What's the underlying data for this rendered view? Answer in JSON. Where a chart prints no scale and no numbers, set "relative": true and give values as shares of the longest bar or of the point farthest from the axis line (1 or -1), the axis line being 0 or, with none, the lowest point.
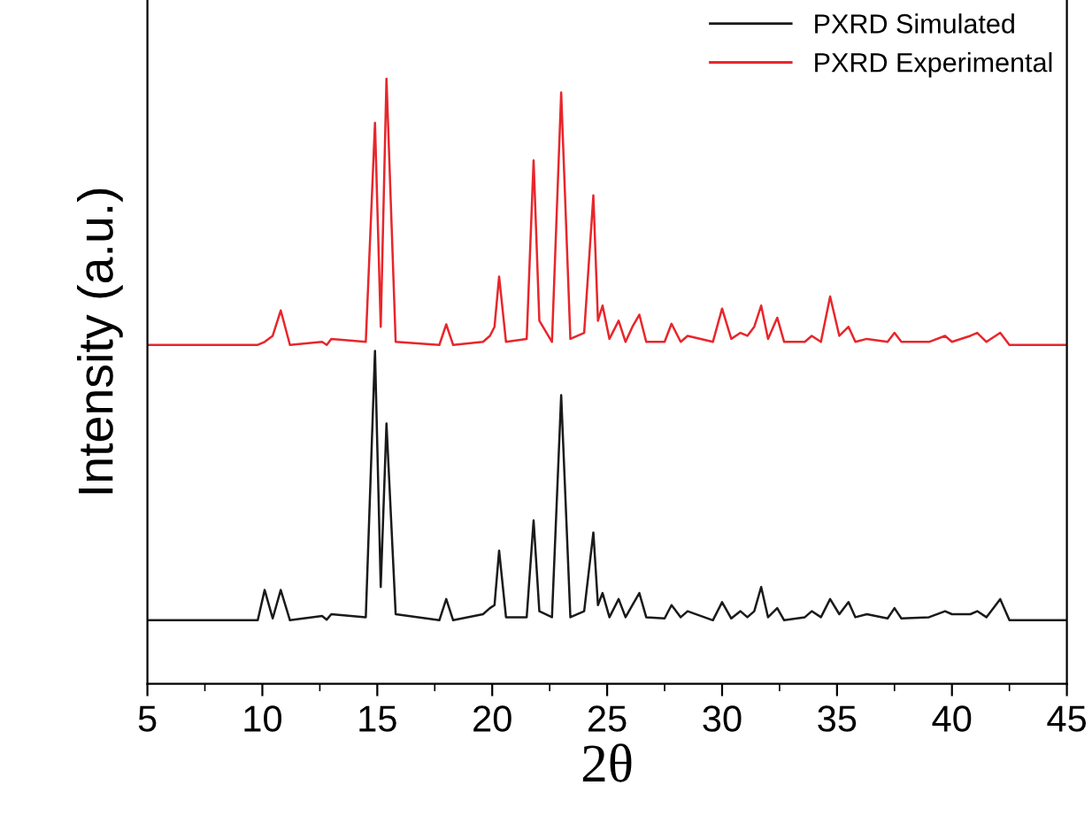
{
  "chart_data": {
    "type": "line",
    "relative": true,
    "xlabel": "2θ",
    "ylabel": "Intensity (a.u.)",
    "x": [
      5,
      9.8,
      10.1,
      10.45,
      10.8,
      11.2,
      12.6,
      12.8,
      13.0,
      14.5,
      14.9,
      15.15,
      15.4,
      15.8,
      17.7,
      18.0,
      18.3,
      19.6,
      19.9,
      20.1,
      20.3,
      20.6,
      21.5,
      21.8,
      22.05,
      22.6,
      23.0,
      23.4,
      24.0,
      24.4,
      24.6,
      24.8,
      25.1,
      25.5,
      25.8,
      26.1,
      26.4,
      26.7,
      27.5,
      27.8,
      28.2,
      28.5,
      29.6,
      30.0,
      30.4,
      30.8,
      31.1,
      31.4,
      31.7,
      32.0,
      32.4,
      32.7,
      33.6,
      33.9,
      34.3,
      34.7,
      35.1,
      35.5,
      35.8,
      36.3,
      37.2,
      37.5,
      37.8,
      39.0,
      39.7,
      40.0,
      40.8,
      41.1,
      41.5,
      42.1,
      42.5,
      45
    ],
    "xlim": [
      5,
      45
    ],
    "xticks": [
      5,
      10,
      15,
      20,
      25,
      30,
      35,
      40,
      45
    ],
    "series": [
      {
        "name": "PXRD Simulated",
        "color": "#1a1a1a",
        "values": [
          0.105,
          0.105,
          0.155,
          0.108,
          0.155,
          0.105,
          0.112,
          0.106,
          0.115,
          0.11,
          0.55,
          0.16,
          0.43,
          0.115,
          0.105,
          0.14,
          0.105,
          0.115,
          0.125,
          0.13,
          0.22,
          0.11,
          0.11,
          0.27,
          0.12,
          0.11,
          0.477,
          0.11,
          0.12,
          0.25,
          0.13,
          0.15,
          0.11,
          0.14,
          0.11,
          0.13,
          0.15,
          0.11,
          0.108,
          0.13,
          0.11,
          0.12,
          0.105,
          0.135,
          0.108,
          0.12,
          0.11,
          0.12,
          0.16,
          0.11,
          0.125,
          0.105,
          0.11,
          0.12,
          0.11,
          0.14,
          0.115,
          0.135,
          0.11,
          0.115,
          0.108,
          0.125,
          0.108,
          0.11,
          0.12,
          0.115,
          0.115,
          0.12,
          0.11,
          0.14,
          0.105,
          0.105
        ]
      },
      {
        "name": "PXRD Experimental",
        "color": "#e8262b",
        "values": [
          0.56,
          0.56,
          0.565,
          0.575,
          0.617,
          0.56,
          0.565,
          0.56,
          0.57,
          0.565,
          0.927,
          0.59,
          1.0,
          0.565,
          0.56,
          0.594,
          0.56,
          0.565,
          0.575,
          0.59,
          0.673,
          0.565,
          0.57,
          0.865,
          0.6,
          0.565,
          0.977,
          0.57,
          0.58,
          0.807,
          0.6,
          0.625,
          0.57,
          0.6,
          0.565,
          0.59,
          0.61,
          0.565,
          0.565,
          0.595,
          0.565,
          0.575,
          0.565,
          0.62,
          0.57,
          0.58,
          0.575,
          0.59,
          0.625,
          0.57,
          0.605,
          0.565,
          0.565,
          0.575,
          0.565,
          0.64,
          0.575,
          0.59,
          0.565,
          0.57,
          0.565,
          0.58,
          0.565,
          0.565,
          0.575,
          0.565,
          0.575,
          0.58,
          0.565,
          0.58,
          0.56,
          0.56
        ]
      }
    ],
    "legend": "top right",
    "grid": false
  }
}
